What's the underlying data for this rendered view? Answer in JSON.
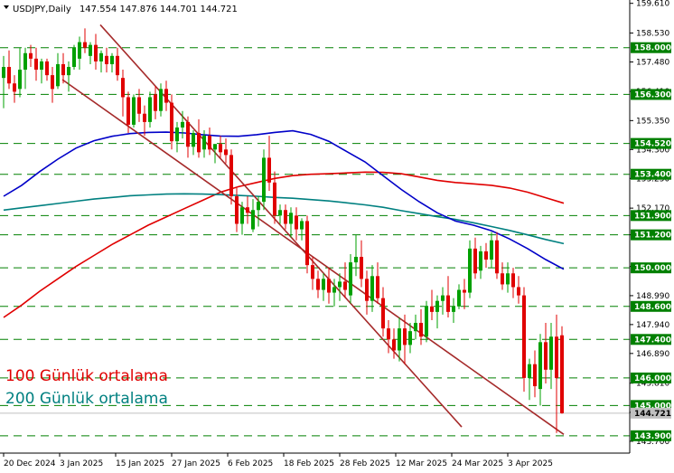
{
  "chart_data": {
    "type": "candlestick",
    "symbol": "USDJPY",
    "timeframe": "Daily",
    "ohlc_header": "147.554 147.876 144.701 144.721",
    "ylim": [
      143.5,
      159.6
    ],
    "y_ticks": [
      159.61,
      158.53,
      157.48,
      156.41,
      155.35,
      154.3,
      153.25,
      152.17,
      151.2,
      150.05,
      148.99,
      147.94,
      146.89,
      145.81,
      144.75,
      143.7
    ],
    "x_ticks": [
      "20 Dec 2024",
      "3 Jan 2025",
      "15 Jan 2025",
      "27 Jan 2025",
      "6 Feb 2025",
      "18 Feb 2025",
      "28 Feb 2025",
      "12 Mar 2025",
      "24 Mar 2025",
      "3 Apr 2025"
    ],
    "levels": [
      {
        "price": 158.0,
        "label": "158.000"
      },
      {
        "price": 156.3,
        "label": "156.300"
      },
      {
        "price": 154.52,
        "label": "154.520"
      },
      {
        "price": 153.4,
        "label": "153.400"
      },
      {
        "price": 151.9,
        "label": "151.900"
      },
      {
        "price": 151.2,
        "label": "151.200"
      },
      {
        "price": 150.0,
        "label": "150.000"
      },
      {
        "price": 148.6,
        "label": "148.600"
      },
      {
        "price": 147.4,
        "label": "147.400"
      },
      {
        "price": 146.0,
        "label": "146.000"
      },
      {
        "price": 145.0,
        "label": "145.000"
      },
      {
        "price": 143.9,
        "label": "143.900"
      }
    ],
    "current_price": {
      "price": 144.721,
      "label": "144.721"
    },
    "ma_labels": [
      {
        "text": "100 Günlük ortalama",
        "color": "#e00000"
      },
      {
        "text": "200 Günlük ortalama",
        "color": "#008080"
      }
    ],
    "series": [
      {
        "color": "#e00000",
        "values": [
          [
            0,
            148.2
          ],
          [
            20,
            148.65
          ],
          [
            40,
            149.15
          ],
          [
            60,
            149.6
          ],
          [
            80,
            150.05
          ],
          [
            100,
            150.45
          ],
          [
            120,
            150.85
          ],
          [
            140,
            151.2
          ],
          [
            160,
            151.55
          ],
          [
            180,
            151.85
          ],
          [
            200,
            152.15
          ],
          [
            220,
            152.45
          ],
          [
            240,
            152.75
          ],
          [
            260,
            152.95
          ],
          [
            280,
            153.1
          ],
          [
            300,
            153.25
          ],
          [
            320,
            153.35
          ],
          [
            340,
            153.4
          ],
          [
            360,
            153.42
          ],
          [
            380,
            153.45
          ],
          [
            400,
            153.48
          ],
          [
            420,
            153.47
          ],
          [
            440,
            153.42
          ],
          [
            460,
            153.3
          ],
          [
            480,
            153.18
          ],
          [
            500,
            153.1
          ],
          [
            520,
            153.05
          ],
          [
            540,
            153.0
          ],
          [
            560,
            152.9
          ],
          [
            580,
            152.75
          ],
          [
            600,
            152.55
          ],
          [
            620,
            152.35
          ]
        ]
      },
      {
        "color": "#008080",
        "values": [
          [
            0,
            152.1
          ],
          [
            20,
            152.18
          ],
          [
            40,
            152.26
          ],
          [
            60,
            152.34
          ],
          [
            80,
            152.42
          ],
          [
            100,
            152.5
          ],
          [
            120,
            152.56
          ],
          [
            140,
            152.62
          ],
          [
            160,
            152.65
          ],
          [
            180,
            152.68
          ],
          [
            200,
            152.69
          ],
          [
            220,
            152.68
          ],
          [
            240,
            152.66
          ],
          [
            260,
            152.63
          ],
          [
            280,
            152.6
          ],
          [
            300,
            152.56
          ],
          [
            320,
            152.53
          ],
          [
            340,
            152.48
          ],
          [
            360,
            152.43
          ],
          [
            380,
            152.36
          ],
          [
            400,
            152.29
          ],
          [
            420,
            152.2
          ],
          [
            440,
            152.08
          ],
          [
            460,
            151.97
          ],
          [
            480,
            151.86
          ],
          [
            500,
            151.76
          ],
          [
            520,
            151.64
          ],
          [
            540,
            151.5
          ],
          [
            560,
            151.36
          ],
          [
            580,
            151.2
          ],
          [
            600,
            151.03
          ],
          [
            620,
            150.88
          ]
        ]
      },
      {
        "color": "#0000c8",
        "values": [
          [
            0,
            152.6
          ],
          [
            20,
            153.0
          ],
          [
            40,
            153.5
          ],
          [
            60,
            153.95
          ],
          [
            80,
            154.35
          ],
          [
            100,
            154.62
          ],
          [
            120,
            154.78
          ],
          [
            140,
            154.88
          ],
          [
            160,
            154.92
          ],
          [
            180,
            154.93
          ],
          [
            200,
            154.9
          ],
          [
            220,
            154.84
          ],
          [
            240,
            154.79
          ],
          [
            260,
            154.78
          ],
          [
            280,
            154.84
          ],
          [
            300,
            154.92
          ],
          [
            320,
            154.98
          ],
          [
            340,
            154.85
          ],
          [
            360,
            154.6
          ],
          [
            380,
            154.22
          ],
          [
            400,
            153.85
          ],
          [
            420,
            153.35
          ],
          [
            440,
            152.85
          ],
          [
            460,
            152.4
          ],
          [
            480,
            152.0
          ],
          [
            500,
            151.7
          ],
          [
            520,
            151.55
          ],
          [
            540,
            151.35
          ],
          [
            560,
            151.05
          ],
          [
            580,
            150.7
          ],
          [
            600,
            150.3
          ],
          [
            620,
            149.95
          ]
        ]
      }
    ],
    "channel_lines": [
      {
        "color": "#a52a2a",
        "from": [
          107,
          158.83
        ],
        "to": [
          507,
          144.22
        ]
      },
      {
        "color": "#a52a2a",
        "from": [
          65,
          156.84
        ],
        "to": [
          620,
          143.95
        ]
      }
    ],
    "candles": [
      [
        0,
        156.9,
        157.7,
        155.8,
        157.3
      ],
      [
        6,
        157.3,
        157.9,
        156.5,
        156.7
      ],
      [
        12,
        156.7,
        157.0,
        156.0,
        156.4
      ],
      [
        18,
        156.5,
        158.0,
        156.2,
        157.2
      ],
      [
        24,
        157.2,
        158.0,
        156.5,
        157.8
      ],
      [
        30,
        157.8,
        158.1,
        157.3,
        157.6
      ],
      [
        36,
        157.6,
        158.0,
        156.8,
        157.2
      ],
      [
        42,
        157.2,
        157.6,
        156.7,
        157.5
      ],
      [
        48,
        157.5,
        157.6,
        156.8,
        157.0
      ],
      [
        54,
        157.0,
        157.3,
        156.0,
        156.5
      ],
      [
        60,
        156.6,
        157.8,
        156.5,
        157.4
      ],
      [
        66,
        157.4,
        157.8,
        156.7,
        157.0
      ],
      [
        72,
        157.0,
        157.5,
        156.4,
        157.3
      ],
      [
        78,
        157.3,
        158.1,
        157.2,
        158.0
      ],
      [
        84,
        157.6,
        158.4,
        157.2,
        158.2
      ],
      [
        90,
        158.2,
        158.7,
        157.8,
        158.0
      ],
      [
        96,
        157.7,
        158.2,
        157.4,
        158.1
      ],
      [
        102,
        158.1,
        158.5,
        157.2,
        157.5
      ],
      [
        108,
        157.5,
        157.9,
        157.1,
        157.8
      ],
      [
        114,
        157.7,
        158.0,
        157.1,
        157.4
      ],
      [
        120,
        157.4,
        157.8,
        157.1,
        157.7
      ],
      [
        126,
        157.7,
        158.0,
        156.8,
        157.0
      ],
      [
        132,
        156.9,
        157.2,
        155.5,
        156.2
      ],
      [
        138,
        156.2,
        156.4,
        154.9,
        155.2
      ],
      [
        144,
        155.2,
        156.3,
        155.1,
        156.2
      ],
      [
        150,
        156.2,
        156.5,
        155.3,
        155.6
      ],
      [
        156,
        155.6,
        155.9,
        154.8,
        155.3
      ],
      [
        162,
        155.3,
        156.4,
        155.1,
        156.2
      ],
      [
        168,
        156.3,
        156.6,
        155.4,
        155.7
      ],
      [
        174,
        155.7,
        156.7,
        155.5,
        156.5
      ],
      [
        180,
        156.5,
        156.8,
        155.7,
        156.0
      ],
      [
        186,
        156.0,
        156.3,
        154.3,
        154.6
      ],
      [
        192,
        154.6,
        155.3,
        154.2,
        155.1
      ],
      [
        198,
        155.1,
        155.7,
        154.7,
        155.3
      ],
      [
        204,
        155.3,
        155.5,
        154.0,
        154.4
      ],
      [
        210,
        154.4,
        155.0,
        154.1,
        154.9
      ],
      [
        216,
        154.9,
        155.4,
        154.0,
        154.2
      ],
      [
        222,
        154.3,
        155.0,
        154.0,
        154.8
      ],
      [
        228,
        154.8,
        155.1,
        154.1,
        154.3
      ],
      [
        234,
        154.3,
        154.5,
        153.8,
        154.5
      ],
      [
        240,
        154.5,
        154.8,
        154.0,
        154.2
      ],
      [
        246,
        154.3,
        154.7,
        153.8,
        154.1
      ],
      [
        252,
        154.1,
        154.3,
        152.3,
        152.6
      ],
      [
        258,
        152.6,
        152.9,
        151.3,
        151.6
      ],
      [
        264,
        151.6,
        152.4,
        151.2,
        152.2
      ],
      [
        270,
        152.2,
        152.6,
        151.6,
        152.0
      ],
      [
        276,
        151.4,
        152.5,
        151.3,
        152.1
      ],
      [
        282,
        152.1,
        152.6,
        151.5,
        152.4
      ],
      [
        288,
        152.4,
        154.3,
        152.1,
        154.0
      ],
      [
        294,
        154.0,
        154.8,
        152.8,
        153.1
      ],
      [
        300,
        153.1,
        153.5,
        151.6,
        151.9
      ],
      [
        306,
        151.9,
        152.3,
        151.6,
        152.1
      ],
      [
        312,
        152.1,
        152.3,
        151.4,
        151.6
      ],
      [
        318,
        151.6,
        152.2,
        151.1,
        152.0
      ],
      [
        324,
        151.9,
        152.2,
        151.0,
        151.4
      ],
      [
        330,
        151.4,
        151.8,
        151.0,
        151.7
      ],
      [
        336,
        151.7,
        151.9,
        149.8,
        150.1
      ],
      [
        342,
        150.1,
        150.4,
        149.2,
        149.6
      ],
      [
        348,
        149.6,
        149.9,
        148.9,
        149.2
      ],
      [
        354,
        149.2,
        149.8,
        148.8,
        149.6
      ],
      [
        360,
        149.6,
        150.0,
        148.7,
        149.1
      ],
      [
        366,
        149.1,
        149.6,
        148.6,
        149.3
      ],
      [
        372,
        149.3,
        149.8,
        148.8,
        149.5
      ],
      [
        378,
        149.5,
        150.2,
        148.9,
        149.2
      ],
      [
        384,
        149.0,
        150.5,
        148.7,
        150.2
      ],
      [
        390,
        150.2,
        151.2,
        149.7,
        150.4
      ],
      [
        396,
        150.4,
        151.0,
        149.3,
        149.6
      ],
      [
        402,
        149.6,
        149.9,
        148.3,
        148.8
      ],
      [
        408,
        148.8,
        150.1,
        148.4,
        149.7
      ],
      [
        414,
        149.7,
        150.2,
        148.7,
        148.9
      ],
      [
        420,
        148.9,
        149.3,
        147.5,
        147.8
      ],
      [
        426,
        147.8,
        148.1,
        146.9,
        147.4
      ],
      [
        432,
        147.4,
        147.8,
        146.7,
        147.0
      ],
      [
        438,
        147.0,
        148.2,
        146.6,
        147.8
      ],
      [
        444,
        147.8,
        148.3,
        146.5,
        147.2
      ],
      [
        450,
        147.2,
        148.0,
        146.9,
        147.7
      ],
      [
        456,
        147.7,
        148.3,
        147.4,
        148.0
      ],
      [
        462,
        148.0,
        148.5,
        147.2,
        147.5
      ],
      [
        468,
        147.5,
        148.8,
        147.3,
        148.6
      ],
      [
        474,
        148.6,
        149.2,
        148.1,
        148.4
      ],
      [
        480,
        148.4,
        149.0,
        147.8,
        148.8
      ],
      [
        486,
        148.8,
        149.3,
        148.3,
        149.0
      ],
      [
        492,
        149.0,
        149.7,
        148.2,
        148.4
      ],
      [
        498,
        148.4,
        148.9,
        148.0,
        148.6
      ],
      [
        504,
        148.6,
        149.4,
        148.5,
        149.2
      ],
      [
        510,
        149.2,
        149.6,
        148.5,
        149.1
      ],
      [
        516,
        149.1,
        151.0,
        148.9,
        150.7
      ],
      [
        522,
        150.7,
        151.1,
        149.6,
        149.8
      ],
      [
        528,
        149.9,
        150.8,
        149.6,
        150.6
      ],
      [
        534,
        150.6,
        150.9,
        150.0,
        150.3
      ],
      [
        540,
        150.3,
        151.3,
        150.0,
        151.0
      ],
      [
        546,
        151.0,
        151.3,
        149.6,
        149.8
      ],
      [
        552,
        149.8,
        150.2,
        149.2,
        149.4
      ],
      [
        558,
        149.4,
        150.2,
        149.1,
        149.8
      ],
      [
        564,
        149.8,
        150.0,
        148.9,
        149.3
      ],
      [
        570,
        149.3,
        149.7,
        148.7,
        149.0
      ],
      [
        576,
        149.0,
        149.3,
        145.5,
        146.0
      ],
      [
        582,
        146.0,
        146.7,
        145.2,
        146.5
      ],
      [
        588,
        146.5,
        147.0,
        145.3,
        145.7
      ],
      [
        594,
        145.6,
        147.6,
        145.0,
        147.3
      ],
      [
        600,
        147.3,
        148.0,
        145.8,
        146.3
      ],
      [
        606,
        146.3,
        148.0,
        145.6,
        147.5
      ],
      [
        612,
        147.5,
        148.3,
        144.0,
        146.0
      ],
      [
        618,
        147.55,
        147.88,
        144.7,
        144.72
      ]
    ]
  }
}
